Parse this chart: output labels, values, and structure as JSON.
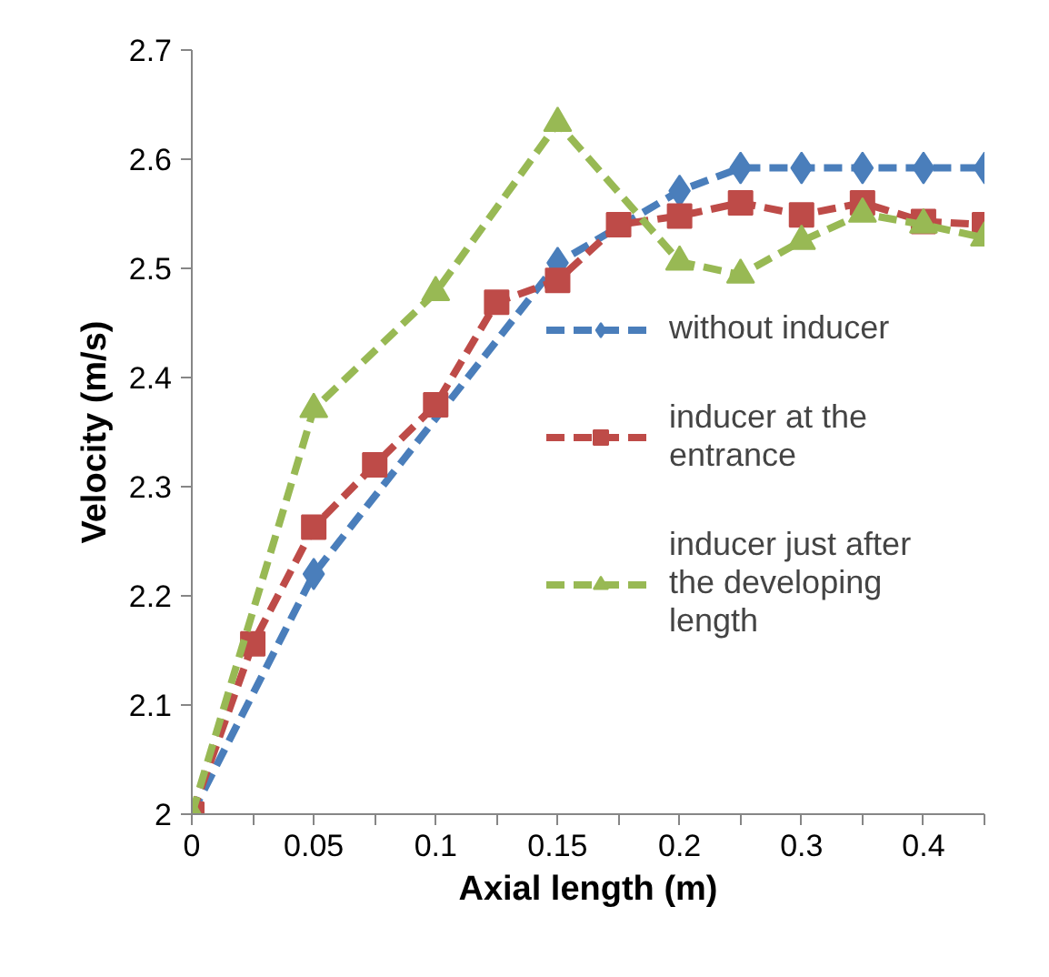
{
  "chart_data": {
    "type": "line",
    "xlabel": "Axial length (m)",
    "ylabel": "Velocity (m/s)",
    "categories": [
      "0",
      null,
      "0.05",
      null,
      "0.1",
      null,
      "0.15",
      null,
      "0.2",
      null,
      "0.3",
      null,
      "0.4",
      null
    ],
    "series": [
      {
        "name": "without inducer",
        "color": "#4a7ebb",
        "marker": "diamond",
        "line_style": "dashed",
        "values": [
          2.0,
          null,
          2.22,
          null,
          null,
          null,
          2.505,
          null,
          2.571,
          2.592,
          2.592,
          2.592,
          2.592,
          2.592
        ]
      },
      {
        "name": "inducer at the entrance",
        "color": "#be4b48",
        "marker": "square",
        "line_style": "dashed",
        "values": [
          2.0,
          2.156,
          2.263,
          2.32,
          2.375,
          2.469,
          2.489,
          2.54,
          2.548,
          2.56,
          2.549,
          2.56,
          2.543,
          2.54
        ]
      },
      {
        "name": "inducer just after the developing length",
        "color": "#98b954",
        "marker": "triangle",
        "line_style": "dashed",
        "values": [
          2.0,
          null,
          2.371,
          null,
          2.478,
          null,
          2.633,
          null,
          2.506,
          2.494,
          2.525,
          2.55,
          2.54,
          2.528
        ]
      }
    ],
    "ylim": [
      2,
      2.7
    ],
    "yticks": [
      2,
      2.1,
      2.2,
      2.3,
      2.4,
      2.5,
      2.6,
      2.7
    ],
    "grid": false,
    "legend": "right"
  }
}
